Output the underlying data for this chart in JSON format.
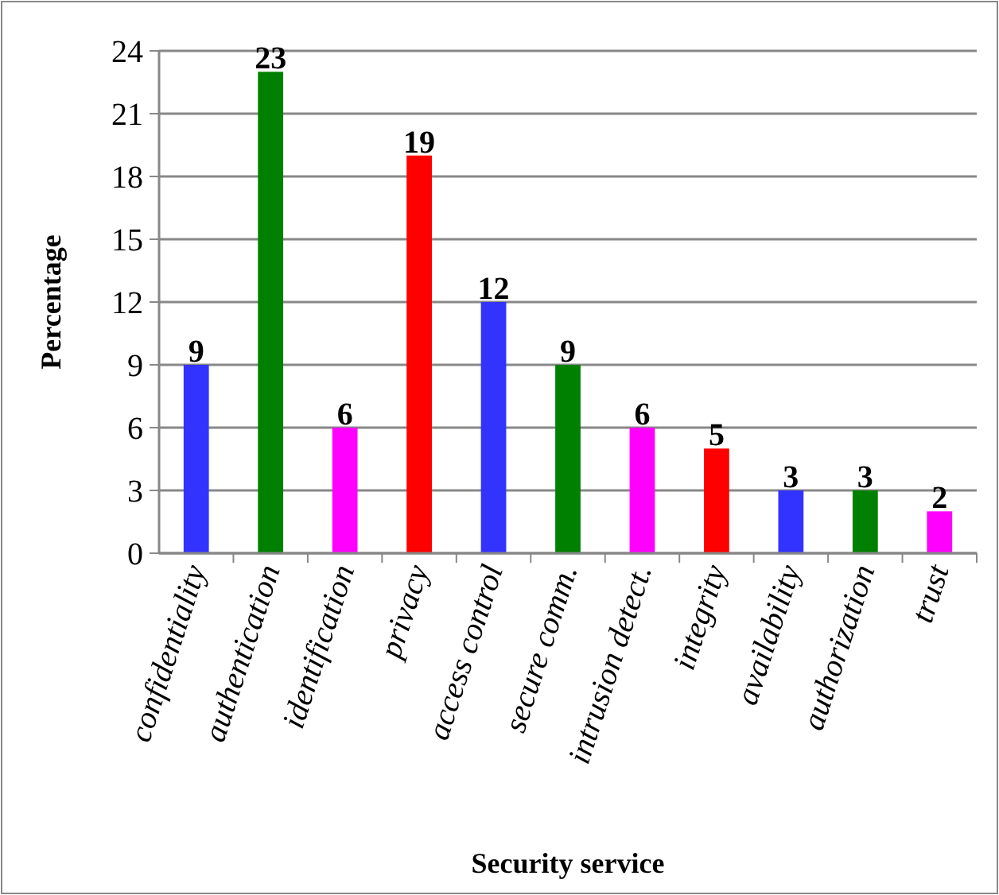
{
  "chart_data": {
    "type": "bar",
    "xlabel": "Security service",
    "ylabel": "Percentage",
    "categories": [
      "confidentiality",
      "authentication",
      "identification",
      "privacy",
      "access control",
      "secure comm.",
      "intrusion detect.",
      "integrity",
      "availability",
      "authorization",
      "trust"
    ],
    "values": [
      9,
      23,
      6,
      19,
      12,
      9,
      6,
      5,
      3,
      3,
      2
    ],
    "colors": [
      "#3333ff",
      "#008000",
      "#ff00ff",
      "#ff0000",
      "#3333ff",
      "#008000",
      "#ff00ff",
      "#ff0000",
      "#3333ff",
      "#008000",
      "#ff00ff"
    ],
    "ylim": [
      0,
      24
    ],
    "yticks": [
      0,
      3,
      6,
      9,
      12,
      15,
      18,
      21,
      24
    ],
    "grid": "y",
    "data_labels": true
  }
}
